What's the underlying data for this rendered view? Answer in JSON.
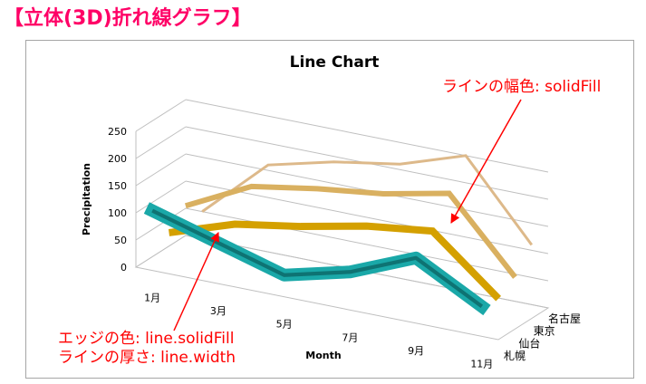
{
  "heading": "【立体(3D)折れ線グラフ】",
  "annotations": {
    "line_fill": "ラインの幅色: solidFill",
    "edge_color": "エッジの色: line.solidFill",
    "line_width": "ラインの厚さ: line.width"
  },
  "colors": {
    "heading": "#ff0066",
    "annotation": "#ff0000",
    "grid": "#bfbfbf"
  },
  "chart_data": {
    "type": "line",
    "title": "Line Chart",
    "xlabel": "Month",
    "ylabel": "Precipitation",
    "ylim": [
      0,
      250
    ],
    "yticks": [
      0,
      50,
      100,
      150,
      200,
      250
    ],
    "x_tick_labels": [
      "1月",
      "3月",
      "5月",
      "7月",
      "9月",
      "11月"
    ],
    "series": [
      {
        "name": "札幌",
        "color": "#1aa8a8",
        "edge_color": "#0a5c5c",
        "values": [
          110,
          75,
          40,
          70,
          120,
          55
        ]
      },
      {
        "name": "仙台",
        "color": "#d4a000",
        "values": [
          50,
          90,
          110,
          135,
          150,
          50
        ]
      },
      {
        "name": "東京",
        "color": "#d9b060",
        "values": [
          80,
          140,
          160,
          175,
          200,
          70
        ]
      },
      {
        "name": "名古屋",
        "color": "#ddb98a",
        "values": [
          50,
          160,
          190,
          210,
          250,
          110
        ]
      }
    ]
  }
}
